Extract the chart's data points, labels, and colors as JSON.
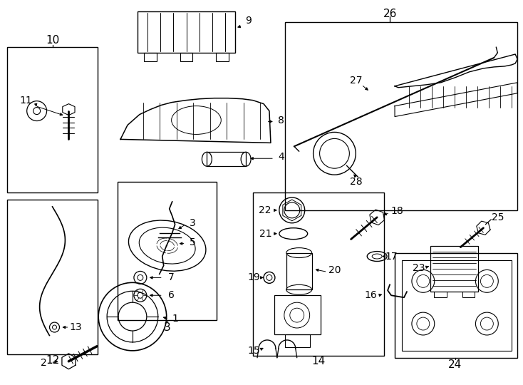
{
  "background_color": "#ffffff",
  "line_color": "#000000",
  "fig_width": 7.34,
  "fig_height": 5.4,
  "dpi": 100
}
